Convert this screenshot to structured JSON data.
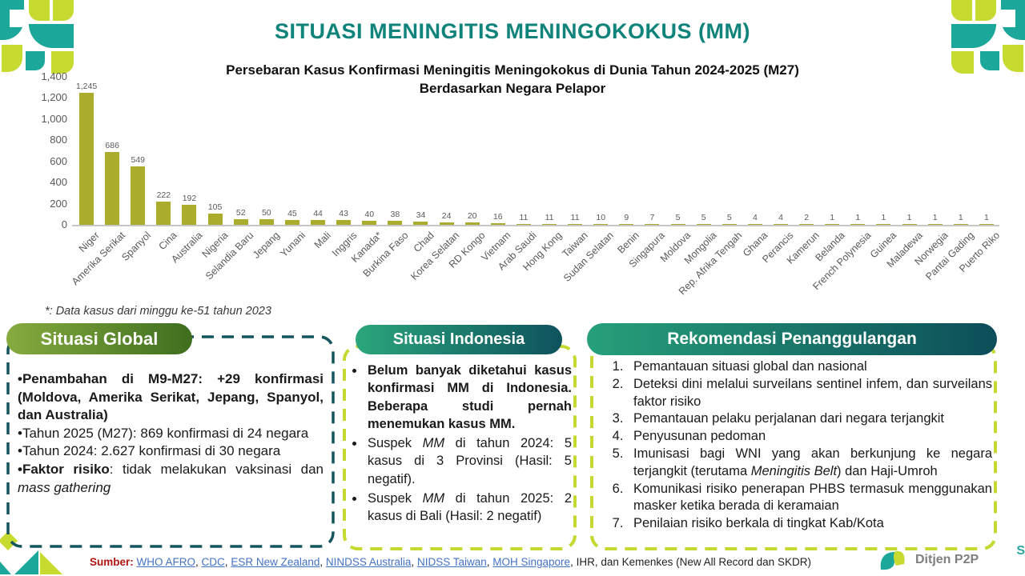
{
  "title": "SITUASI MENINGITIS MENINGOKOKUS (MM)",
  "chart_data": {
    "type": "bar",
    "title": "Persebaran Kasus Konfirmasi Meningitis Meningokokus di Dunia Tahun 2024-2025 (M27) Berdasarkan Negara Pelapor",
    "title_line1": "Persebaran Kasus Konfirmasi Meningitis Meningokokus di Dunia Tahun 2024-2025 (M27)",
    "title_line2": "Berdasarkan Negara Pelapor",
    "categories": [
      "Niger",
      "Amerika Serikat",
      "Spanyol",
      "Cina",
      "Australia",
      "Nigeria",
      "Selandia Baru",
      "Jepang",
      "Yunani",
      "Mali",
      "Inggris",
      "Kanada*",
      "Burkina Faso",
      "Chad",
      "Korea Selatan",
      "RD Kongo",
      "Vietnam",
      "Arab Saudi",
      "Hong Kong",
      "Taiwan",
      "Sudan Selatan",
      "Benin",
      "Singapura",
      "Moldova",
      "Mongolia",
      "Rep. Afrika Tengah",
      "Ghana",
      "Perancis",
      "Kamerun",
      "Belanda",
      "French Polynesia",
      "Guinea",
      "Maladewa",
      "Norwegia",
      "Pantai Gading",
      "Puerto Riko"
    ],
    "values": [
      1245,
      686,
      549,
      222,
      192,
      105,
      52,
      50,
      45,
      44,
      43,
      40,
      38,
      34,
      24,
      20,
      16,
      11,
      11,
      11,
      10,
      9,
      7,
      5,
      5,
      5,
      4,
      4,
      2,
      1,
      1,
      1,
      1,
      1,
      1,
      1
    ],
    "xlabel": "",
    "ylabel": "",
    "ylim": [
      0,
      1400
    ],
    "y_ticks": [
      "1,400",
      "1,200",
      "1,000",
      "800",
      "600",
      "400",
      "200",
      "0"
    ],
    "grid": false,
    "legend": false,
    "bar_color": "#A9AC2C",
    "footnote": "*: Data kasus dari minggu ke-51 tahun 2023"
  },
  "panels": {
    "global": {
      "header": "Situasi Global",
      "items": [
        {
          "runs": [
            {
              "t": "•Penambahan di  M9-M27: +29 konfirmasi (Moldova, Amerika Serikat, Jepang, Spanyol, dan Australia)",
              "b": true
            }
          ]
        },
        {
          "runs": [
            {
              "t": "•Tahun 2025 (M27): 869 konfirmasi di 24 negara"
            }
          ]
        },
        {
          "runs": [
            {
              "t": "•Tahun 2024: 2.627 konfirmasi di 30 negara"
            }
          ]
        },
        {
          "runs": [
            {
              "t": "•Faktor risiko",
              "b": true
            },
            {
              "t": ": tidak melakukan vaksinasi dan "
            },
            {
              "t": "mass gathering",
              "i": true
            }
          ]
        }
      ]
    },
    "indonesia": {
      "header": "Situasi Indonesia",
      "items": [
        {
          "runs": [
            {
              "t": "Belum banyak diketahui kasus konfirmasi MM di Indonesia. Beberapa studi pernah menemukan kasus MM.",
              "b": true
            }
          ]
        },
        {
          "runs": [
            {
              "t": "Suspek "
            },
            {
              "t": "MM",
              "i": true
            },
            {
              "t": " di tahun 2024: 5 kasus di 3 Provinsi (Hasil: 5 negatif)."
            }
          ]
        },
        {
          "runs": [
            {
              "t": "Suspek "
            },
            {
              "t": "MM",
              "i": true
            },
            {
              "t": " di tahun 2025: 2 kasus di Bali (Hasil: 2 negatif)"
            }
          ]
        }
      ]
    },
    "rekomendasi": {
      "header": "Rekomendasi Penanggulangan",
      "items": [
        {
          "runs": [
            {
              "t": "Pemantauan situasi global dan nasional"
            }
          ]
        },
        {
          "runs": [
            {
              "t": "Deteksi dini melalui surveilans sentinel infem, dan surveilans faktor risiko"
            }
          ]
        },
        {
          "runs": [
            {
              "t": "Pemantauan pelaku perjalanan dari negara terjangkit"
            }
          ]
        },
        {
          "runs": [
            {
              "t": "Penyusunan pedoman"
            }
          ]
        },
        {
          "runs": [
            {
              "t": "Imunisasi bagi WNI yang akan berkunjung ke negara terjangkit (terutama "
            },
            {
              "t": "Meningitis Belt",
              "i": true
            },
            {
              "t": ") dan Haji-Umroh"
            }
          ]
        },
        {
          "runs": [
            {
              "t": "Komunikasi risiko penerapan PHBS termasuk menggunakan masker ketika berada di keramaian"
            }
          ]
        },
        {
          "runs": [
            {
              "t": "Penilaian risiko berkala di tingkat Kab/Kota"
            }
          ]
        }
      ]
    }
  },
  "footer": {
    "label": "Sumber:",
    "sources": [
      {
        "t": "WHO AFRO",
        "link": true
      },
      {
        "t": "CDC",
        "link": true
      },
      {
        "t": "ESR New Zealand",
        "link": true
      },
      {
        "t": "NINDSS Australia",
        "link": true
      },
      {
        "t": "NIDSS Taiwan",
        "link": true
      },
      {
        "t": "MOH Singapore",
        "link": true
      },
      {
        "t": "IHR, dan Kemenkes (New All Record dan SKDR)",
        "link": false
      }
    ],
    "logo_text": "Ditjen P2P",
    "edge_fragment": "S"
  },
  "colors": {
    "title_teal": "#10837B",
    "bar_olive": "#A9AC2C",
    "dark_teal_border": "#14555E",
    "lime_border": "#C5D930",
    "pill_global_gradient": [
      "#86AB3F",
      "#3E6E1E"
    ],
    "pill_teal_gradient": [
      "#27A07A",
      "#0C4E59"
    ],
    "link_blue": "#4472C4",
    "sumber_red": "#B01513",
    "deco_teal": "#1BA79A",
    "deco_lime": "#C7DA2F"
  }
}
